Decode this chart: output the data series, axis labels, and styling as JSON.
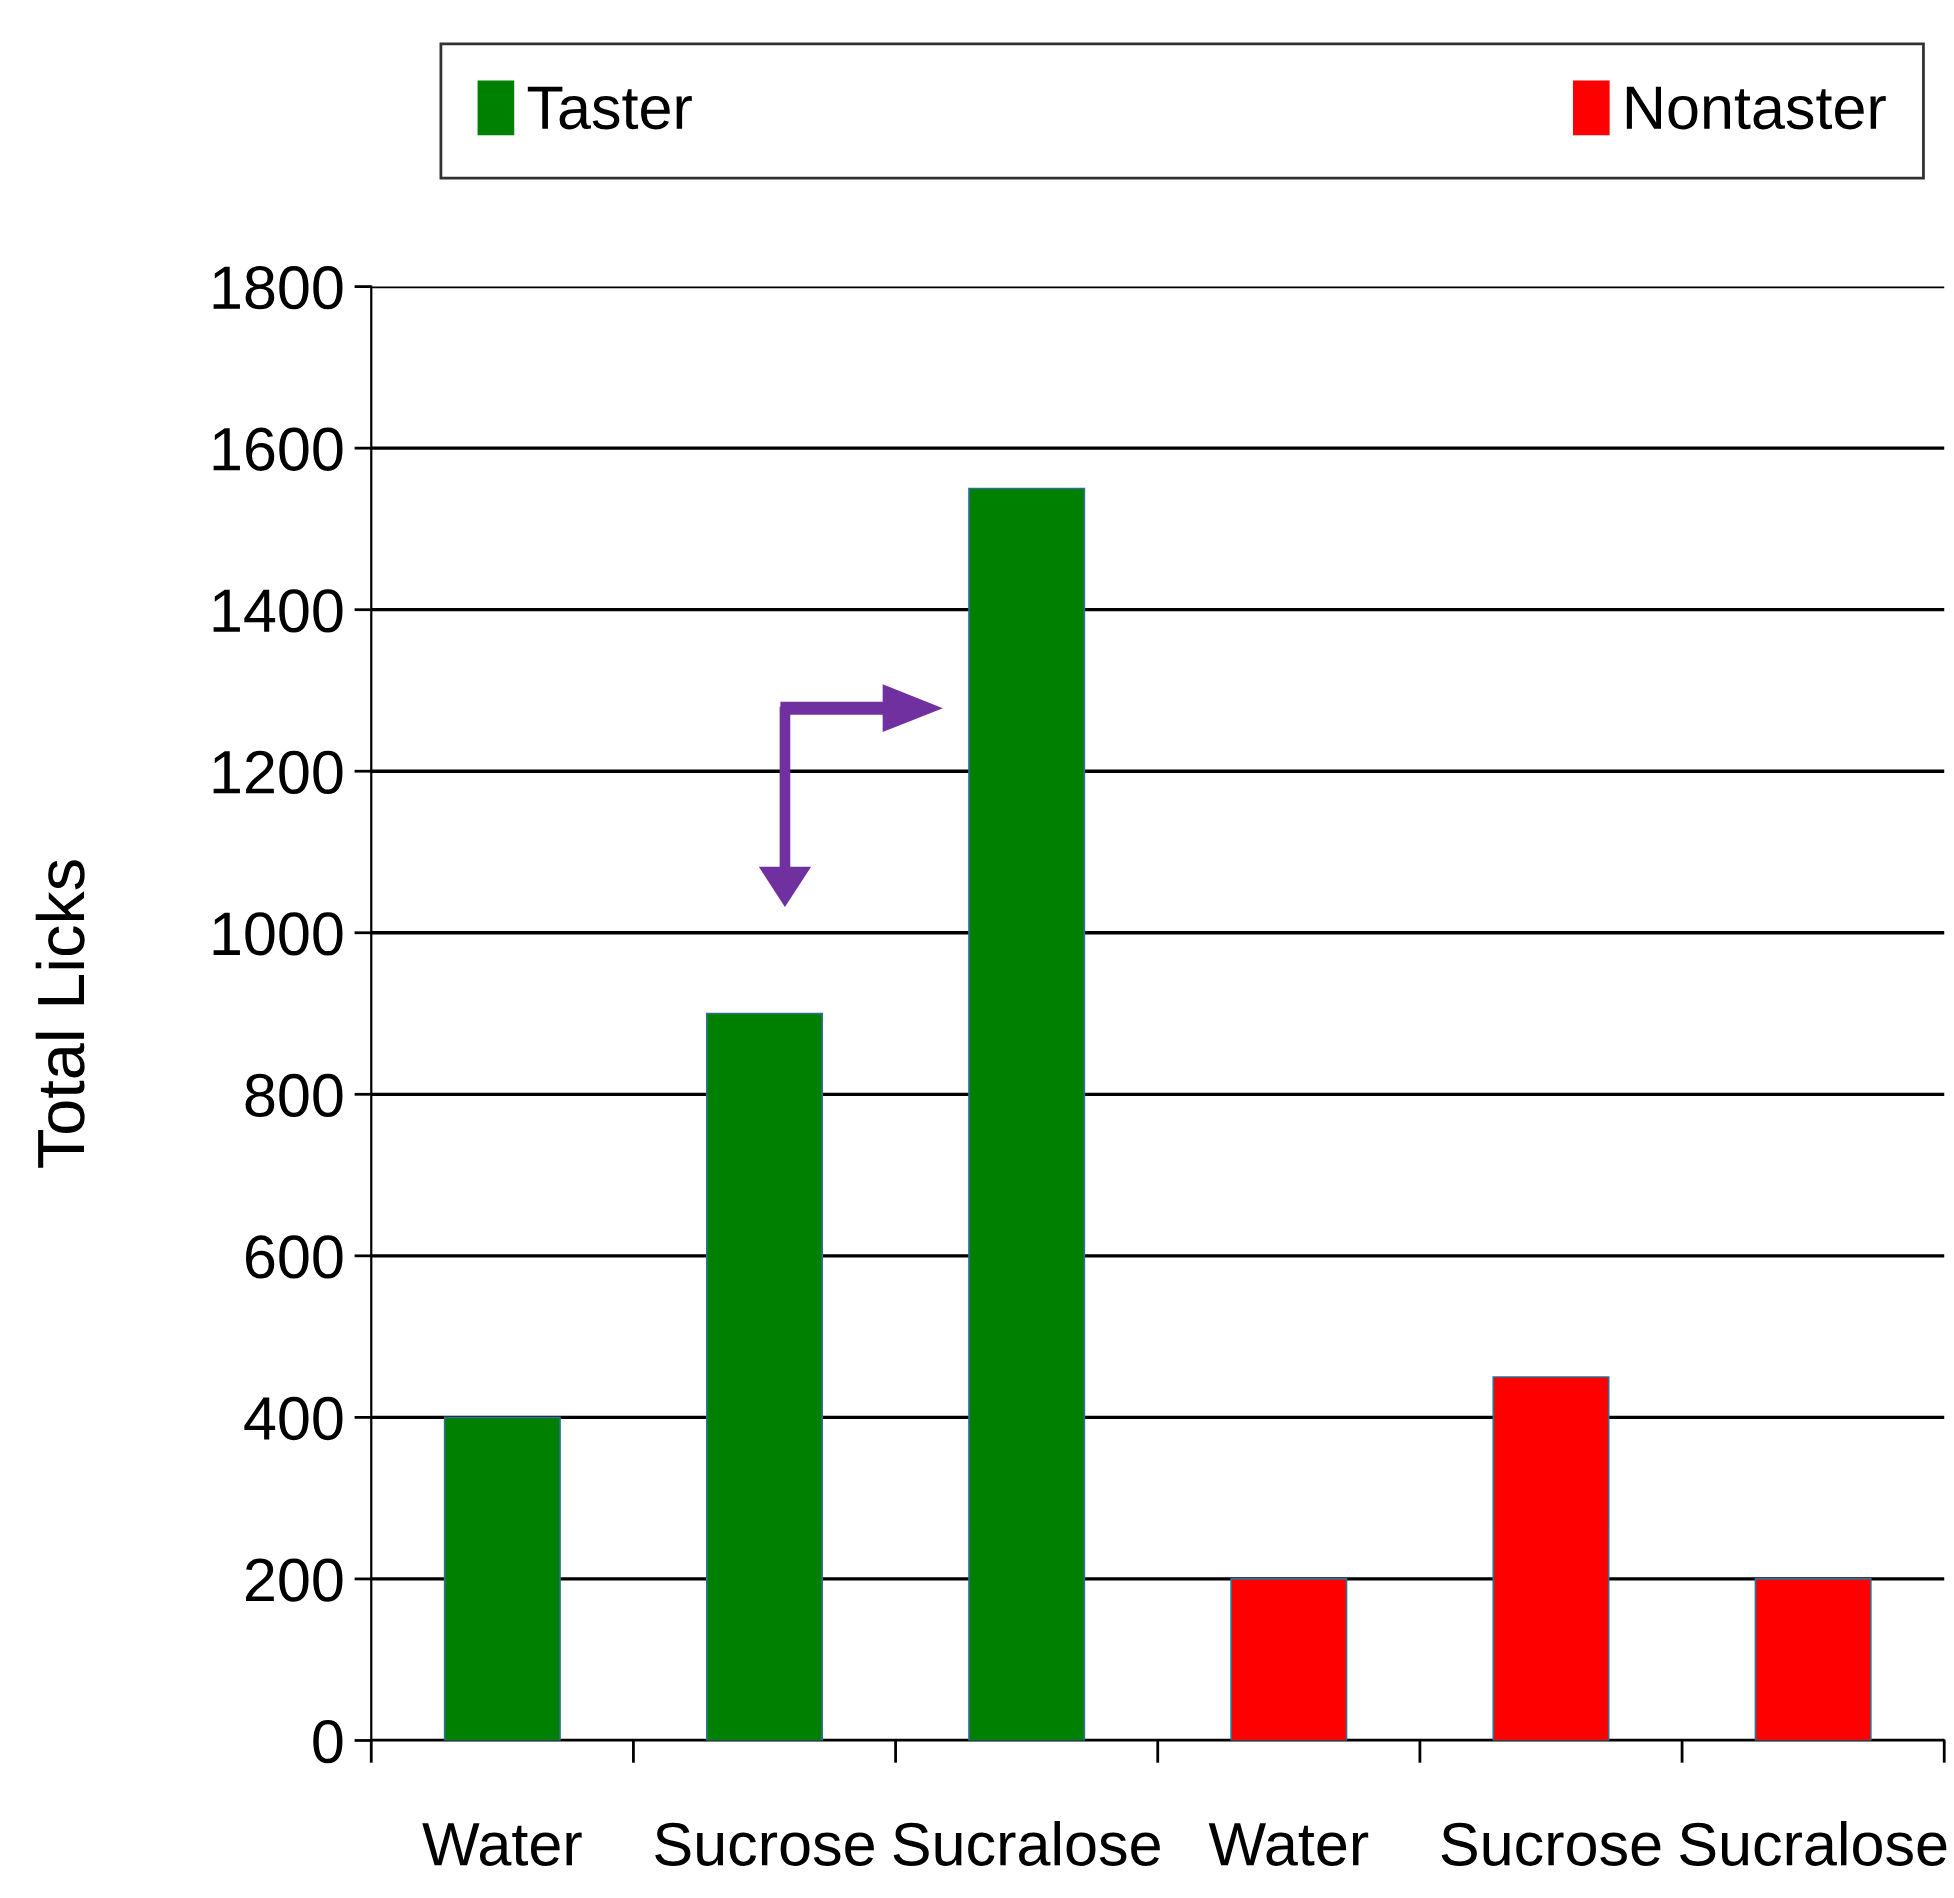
{
  "chart_data": {
    "type": "bar",
    "ylabel": "Total Licks",
    "categories": [
      "Water",
      "Sucrose",
      "Sucralose",
      "Water",
      "Sucrose",
      "Sucralose"
    ],
    "series": [
      {
        "name": "Taster",
        "color": "#008000",
        "values": [
          400,
          900,
          1550,
          null,
          null,
          null
        ]
      },
      {
        "name": "Nontaster",
        "color": "#ff0000",
        "values": [
          null,
          null,
          null,
          200,
          450,
          200
        ]
      }
    ],
    "ylim": [
      0,
      1800
    ],
    "yticks": [
      0,
      200,
      400,
      600,
      800,
      1000,
      1200,
      1400,
      1600,
      1800
    ],
    "grid": "y",
    "legend": "top"
  }
}
